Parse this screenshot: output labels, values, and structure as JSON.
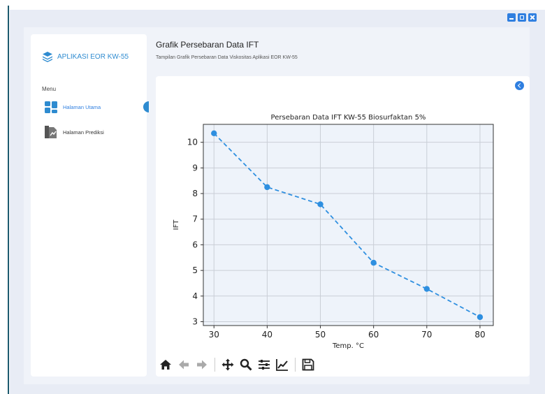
{
  "app": {
    "brand": "APLIKASI EOR KW-55",
    "menu_label": "Menu",
    "nav": [
      {
        "label": "Halaman Utama",
        "icon": "dashboard-icon",
        "active": true
      },
      {
        "label": "Halaman Prediksi",
        "icon": "document-chart-icon",
        "active": false
      }
    ]
  },
  "page": {
    "title": "Grafik Persebaran Data IFT",
    "subtitle": "Tampilan Grafik Persebaran Data Viskositas Aplikasi EOR KW-55"
  },
  "toolbar": [
    "home-icon",
    "back-arrow-icon",
    "forward-arrow-icon",
    "pan-icon",
    "zoom-icon",
    "configure-subplots-icon",
    "edit-axis-icon",
    "save-icon"
  ],
  "colors": {
    "accent": "#2f7fe0",
    "line": "#2e8fe0",
    "plot_bg": "#eef3fa"
  },
  "chart_data": {
    "type": "line",
    "title": "Persebaran Data IFT KW-55 Biosurfaktan 5%",
    "xlabel": "Temp. °C",
    "ylabel": "IFT",
    "x": [
      30,
      40,
      50,
      60,
      70,
      80
    ],
    "y": [
      10.35,
      8.25,
      7.58,
      5.3,
      4.28,
      3.18
    ],
    "xlim": [
      28,
      82.5
    ],
    "ylim": [
      2.85,
      10.7
    ],
    "xticks": [
      "30",
      "40",
      "50",
      "60",
      "70",
      "80"
    ],
    "yticks": [
      "3",
      "4",
      "5",
      "6",
      "7",
      "8",
      "9",
      "10"
    ],
    "grid": true,
    "line_style": "dashed",
    "marker": "circle"
  }
}
